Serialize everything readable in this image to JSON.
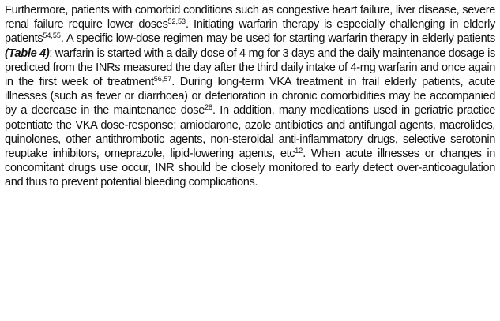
{
  "paragraph": {
    "segments": [
      {
        "t": "Furthermore, patients with comorbid conditions such as congestive heart failure, liver disease, severe renal failure require lower doses"
      },
      {
        "t": "52,53",
        "sup": true
      },
      {
        "t": ". Initiating warfarin therapy is especially challenging in elderly patients"
      },
      {
        "t": "54,55",
        "sup": true
      },
      {
        "t": ". A specific low-dose regimen may be used for starting warfarin therapy in elderly patients "
      },
      {
        "t": "(Table 4)",
        "bi": true
      },
      {
        "t": ": warfarin is started with a daily dose of 4 mg for 3 days and the daily maintenance dosage is predicted from the INRs measured the day after the third daily intake of 4-mg warfarin and once again in the first week of treatment"
      },
      {
        "t": "56,57",
        "sup": true
      },
      {
        "t": ". During long-term VKA treatment in frail elderly patients, acute illnesses (such as fever or diarrhoea) or deterioration in chronic comorbidities may be accompanied by a decrease in the maintenance dose"
      },
      {
        "t": "28",
        "sup": true
      },
      {
        "t": ". In addition, many medications used in geriatric practice potentiate the VKA dose-response: amiodarone, azole antibiotics and antifungal agents, macrolides, quinolones, other antithrombotic agents, non-steroidal anti-inflammatory drugs, selective serotonin reuptake inhibitors, omeprazole, lipid-lowering agents, etc"
      },
      {
        "t": "12",
        "sup": true
      },
      {
        "t": ". When acute illnesses or changes in concomitant drugs use occur, INR should be closely monitored to early detect over-anticoagulation and thus to prevent potential bleeding complications."
      }
    ]
  }
}
